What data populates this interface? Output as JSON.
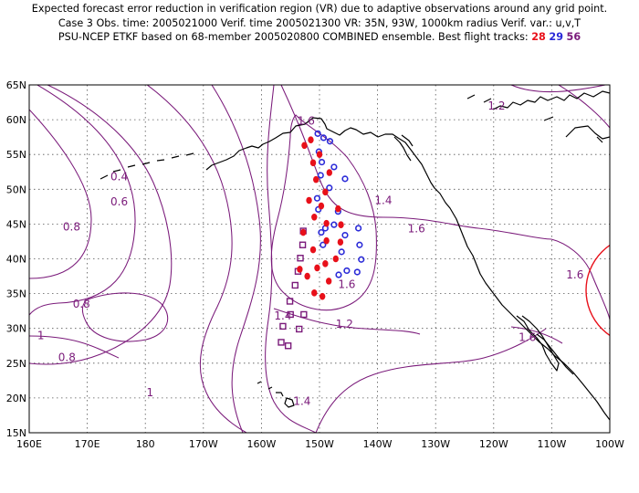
{
  "header": {
    "line1": "Expected forecast error reduction in verification region (VR) due to adaptive observations around any grid point.",
    "line2": "Case 3   Obs. time: 2005021000   Verif. time 2005021300   VR: 35N, 93W, 1000km radius   Verif. var.: u,v,T",
    "line3_prefix": "PSU-NCEP ETKF based on 68-member 2005020800 COMBINED ensemble.   Best flight tracks: ",
    "track_a": "28",
    "track_b": "29",
    "track_c": "56"
  },
  "axes": {
    "x_labels": [
      "160E",
      "170E",
      "180",
      "170W",
      "160W",
      "150W",
      "140W",
      "130W",
      "120W",
      "110W",
      "100W"
    ],
    "y_labels": [
      "15N",
      "20N",
      "25N",
      "30N",
      "35N",
      "40N",
      "45N",
      "50N",
      "55N",
      "60N",
      "65N"
    ]
  },
  "contour_labels": [
    {
      "text": "1.2",
      "lon": -119.5,
      "lat": 62.0
    },
    {
      "text": "1.6",
      "lon": -152.3,
      "lat": 59.8
    },
    {
      "text": "0.4",
      "lon": 175.5,
      "lat": 51.8
    },
    {
      "text": "0.6",
      "lon": 175.5,
      "lat": 48.2
    },
    {
      "text": "1.4",
      "lon": -139.0,
      "lat": 48.4
    },
    {
      "text": "0.8",
      "lon": 167.3,
      "lat": 44.6
    },
    {
      "text": "1.6",
      "lon": -133.3,
      "lat": 44.3
    },
    {
      "text": "1.6",
      "lon": -106.0,
      "lat": 37.7
    },
    {
      "text": "1.6",
      "lon": -145.3,
      "lat": 36.3
    },
    {
      "text": "0.8",
      "lon": 169.0,
      "lat": 33.5
    },
    {
      "text": "1.4",
      "lon": -156.3,
      "lat": 31.8
    },
    {
      "text": "1.2",
      "lon": -145.7,
      "lat": 30.6
    },
    {
      "text": "1.6",
      "lon": -114.2,
      "lat": 28.7
    },
    {
      "text": "1",
      "lon": 162.0,
      "lat": 29.0
    },
    {
      "text": "0.8",
      "lon": 166.5,
      "lat": 25.8
    },
    {
      "text": "1",
      "lon": 180.8,
      "lat": 20.8
    },
    {
      "text": "1.4",
      "lon": -153.0,
      "lat": 19.5
    }
  ],
  "flight_tracks": {
    "track_28_red": [
      [
        -151.5,
        57.1
      ],
      [
        -152.6,
        56.3
      ],
      [
        -150.0,
        55.0
      ],
      [
        -151.1,
        53.8
      ],
      [
        -148.3,
        52.4
      ],
      [
        -150.6,
        51.4
      ],
      [
        -149.0,
        49.6
      ],
      [
        -151.8,
        48.4
      ],
      [
        -149.7,
        47.6
      ],
      [
        -146.8,
        47.2
      ],
      [
        -150.9,
        46.0
      ],
      [
        -148.8,
        45.1
      ],
      [
        -146.3,
        44.9
      ],
      [
        -152.8,
        43.8
      ],
      [
        -148.8,
        42.6
      ],
      [
        -146.4,
        42.4
      ],
      [
        -151.1,
        41.3
      ],
      [
        -147.2,
        40.0
      ],
      [
        -149.0,
        39.3
      ],
      [
        -150.4,
        38.7
      ],
      [
        -153.4,
        38.5
      ],
      [
        -152.1,
        37.5
      ],
      [
        -148.4,
        36.8
      ],
      [
        -150.9,
        35.1
      ],
      [
        -149.5,
        34.6
      ]
    ],
    "track_29_blue": [
      [
        -150.3,
        58.0
      ],
      [
        -149.3,
        57.4
      ],
      [
        -148.2,
        56.9
      ],
      [
        -150.1,
        55.4
      ],
      [
        -149.6,
        53.9
      ],
      [
        -147.5,
        53.2
      ],
      [
        -149.8,
        52.0
      ],
      [
        -145.6,
        51.5
      ],
      [
        -148.3,
        50.2
      ],
      [
        -150.4,
        48.7
      ],
      [
        -150.2,
        47.1
      ],
      [
        -146.8,
        46.8
      ],
      [
        -147.5,
        44.9
      ],
      [
        -143.3,
        44.4
      ],
      [
        -149.0,
        44.4
      ],
      [
        -149.7,
        43.8
      ],
      [
        -145.6,
        43.4
      ],
      [
        -149.4,
        42.0
      ],
      [
        -143.1,
        42.0
      ],
      [
        -146.2,
        41.0
      ],
      [
        -142.8,
        39.9
      ],
      [
        -145.3,
        38.3
      ],
      [
        -143.5,
        38.1
      ],
      [
        -146.7,
        37.7
      ]
    ],
    "track_56_purple": [
      [
        -152.8,
        44.0
      ],
      [
        -152.9,
        42.0
      ],
      [
        -153.3,
        40.1
      ],
      [
        -153.7,
        38.2
      ],
      [
        -154.2,
        36.2
      ],
      [
        -155.1,
        33.9
      ],
      [
        -155.0,
        32.0
      ],
      [
        -152.7,
        32.0
      ],
      [
        -156.3,
        30.3
      ],
      [
        -153.5,
        29.9
      ],
      [
        -156.6,
        28.0
      ],
      [
        -155.4,
        27.5
      ]
    ]
  },
  "colors": {
    "contour": "#7a1a7a",
    "coast": "#000000",
    "track_28": "#e8101a",
    "track_29": "#2a2ad8",
    "track_56": "#7a1a7a",
    "vr_circle": "#e8101a"
  }
}
